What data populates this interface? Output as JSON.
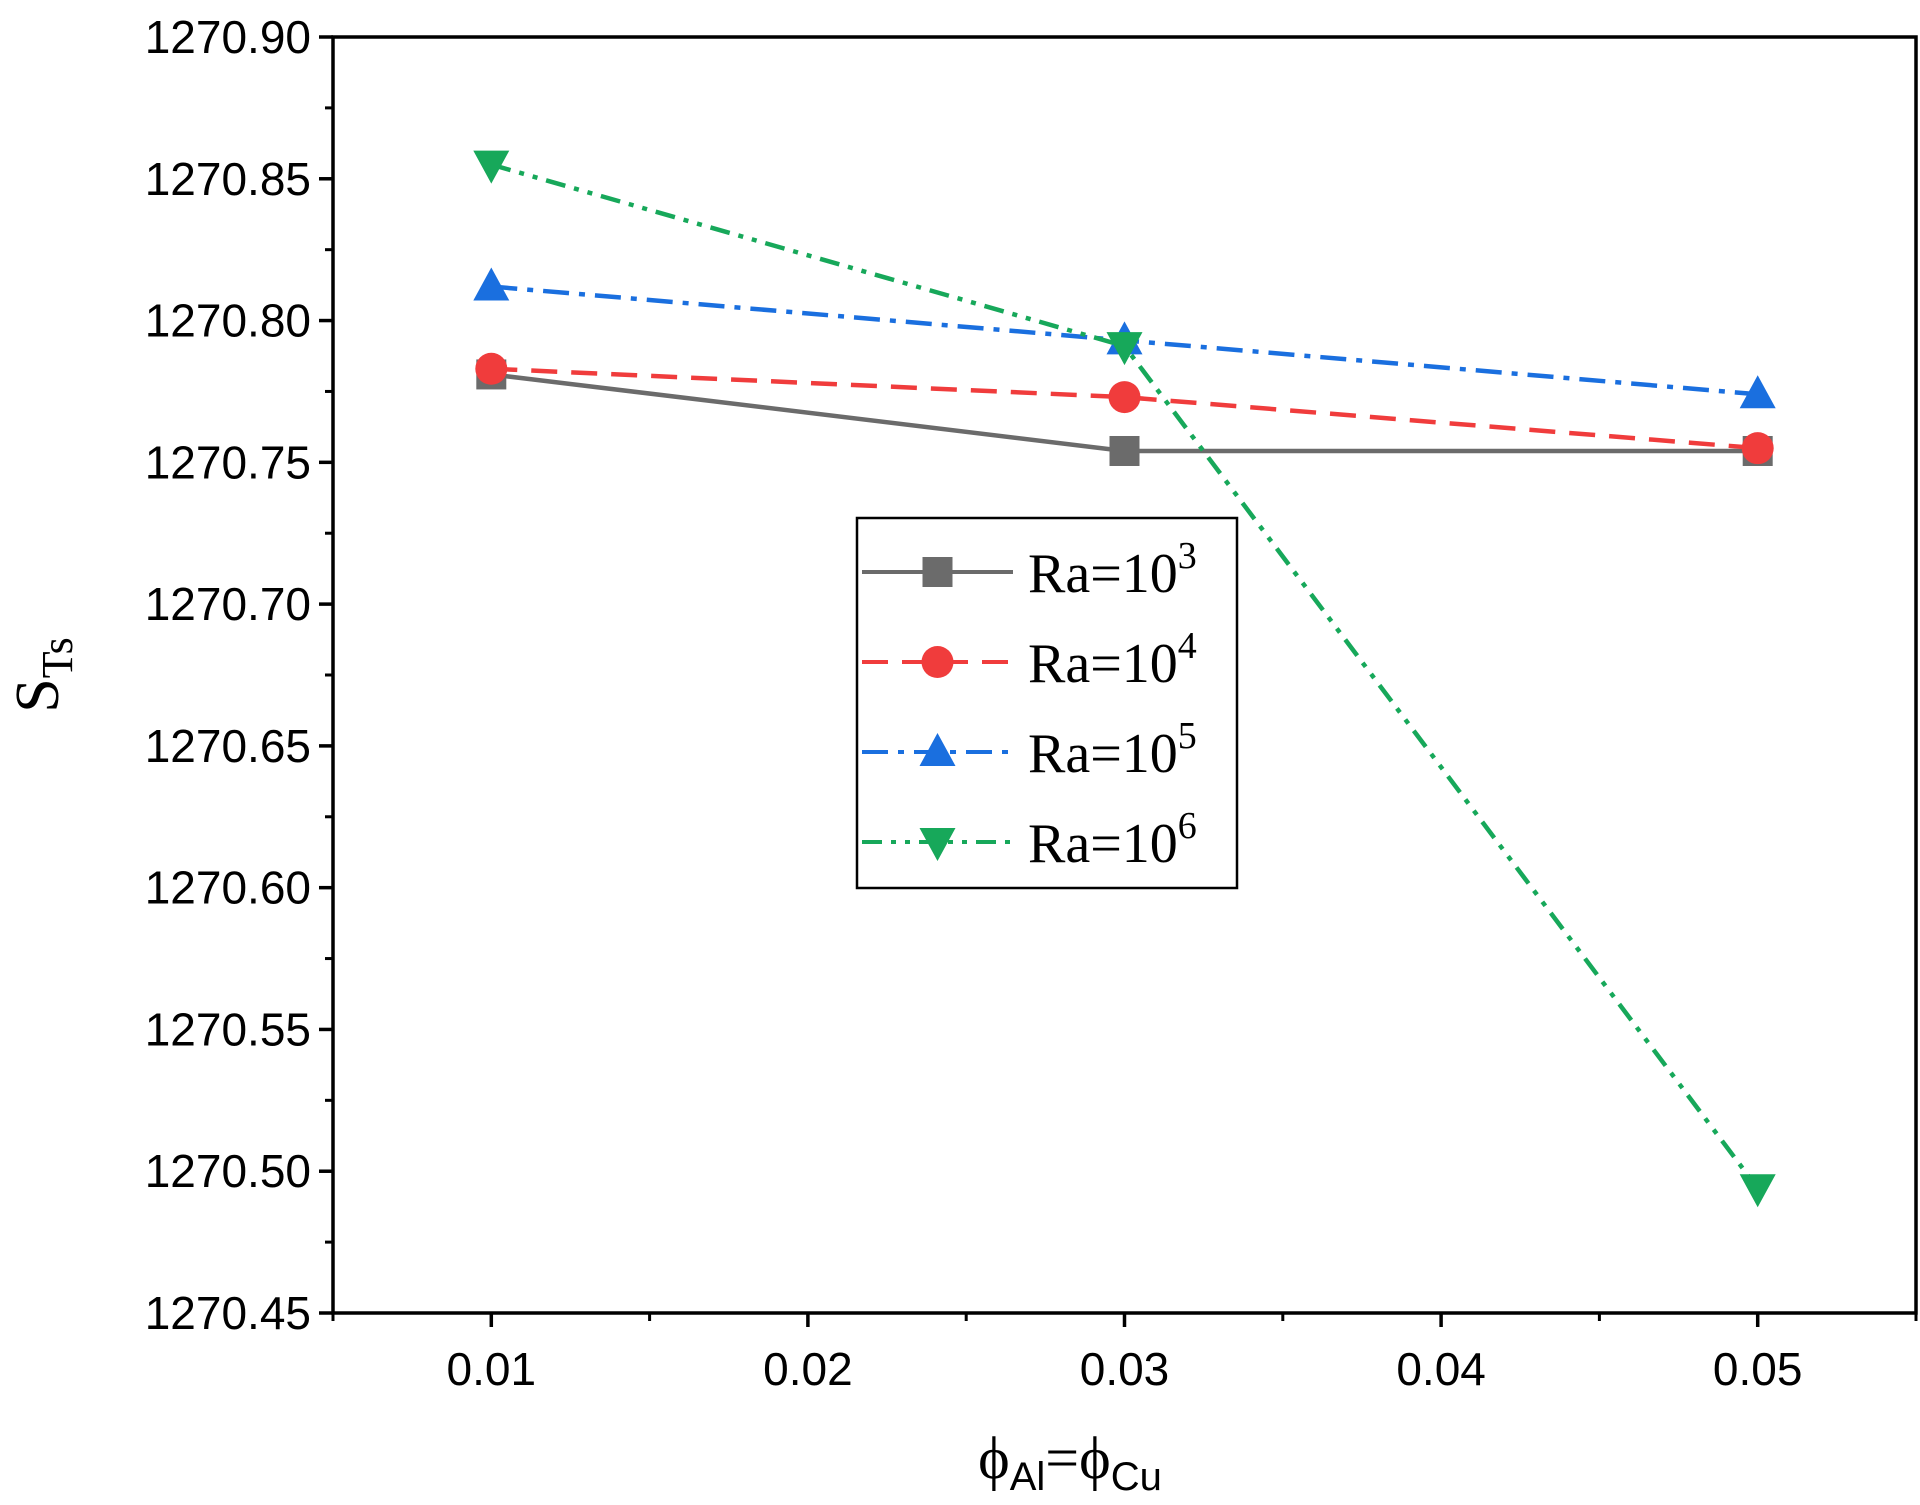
{
  "chart_data": {
    "type": "line",
    "title": "",
    "xlabel": {
      "main": "ϕ",
      "sub1": "Al",
      "eq": "=ϕ",
      "sub2": "Cu"
    },
    "ylabel": {
      "main": "S",
      "sub": "Ts"
    },
    "x": [
      0.01,
      0.03,
      0.05
    ],
    "xlim": [
      0.005,
      0.055
    ],
    "ylim": [
      1270.45,
      1270.9
    ],
    "xticks": [
      0.01,
      0.02,
      0.03,
      0.04,
      0.05
    ],
    "xtick_labels": [
      "0.01",
      "0.02",
      "0.03",
      "0.04",
      "0.05"
    ],
    "yticks": [
      1270.45,
      1270.5,
      1270.55,
      1270.6,
      1270.65,
      1270.7,
      1270.75,
      1270.8,
      1270.85,
      1270.9
    ],
    "ytick_labels": [
      "1270.45",
      "1270.50",
      "1270.55",
      "1270.60",
      "1270.65",
      "1270.70",
      "1270.75",
      "1270.80",
      "1270.85",
      "1270.90"
    ],
    "grid": false,
    "legend_position": "center",
    "series": [
      {
        "name": "Ra=10^3",
        "label_base": "Ra=10",
        "label_exp": "3",
        "color": "#6b6b6b",
        "marker": "square",
        "dash": "solid",
        "values": [
          1270.781,
          1270.754,
          1270.754
        ]
      },
      {
        "name": "Ra=10^4",
        "label_base": "Ra=10",
        "label_exp": "4",
        "color": "#f03c3c",
        "marker": "circle",
        "dash": "dash",
        "values": [
          1270.783,
          1270.773,
          1270.755
        ]
      },
      {
        "name": "Ra=10^5",
        "label_base": "Ra=10",
        "label_exp": "5",
        "color": "#1a6fdf",
        "marker": "triangle-up",
        "dash": "dashdot",
        "values": [
          1270.812,
          1270.793,
          1270.774
        ]
      },
      {
        "name": "Ra=10^6",
        "label_base": "Ra=10",
        "label_exp": "6",
        "color": "#17a85a",
        "marker": "triangle-down",
        "dash": "dashdotdot",
        "values": [
          1270.855,
          1270.791,
          1270.494
        ]
      }
    ]
  }
}
